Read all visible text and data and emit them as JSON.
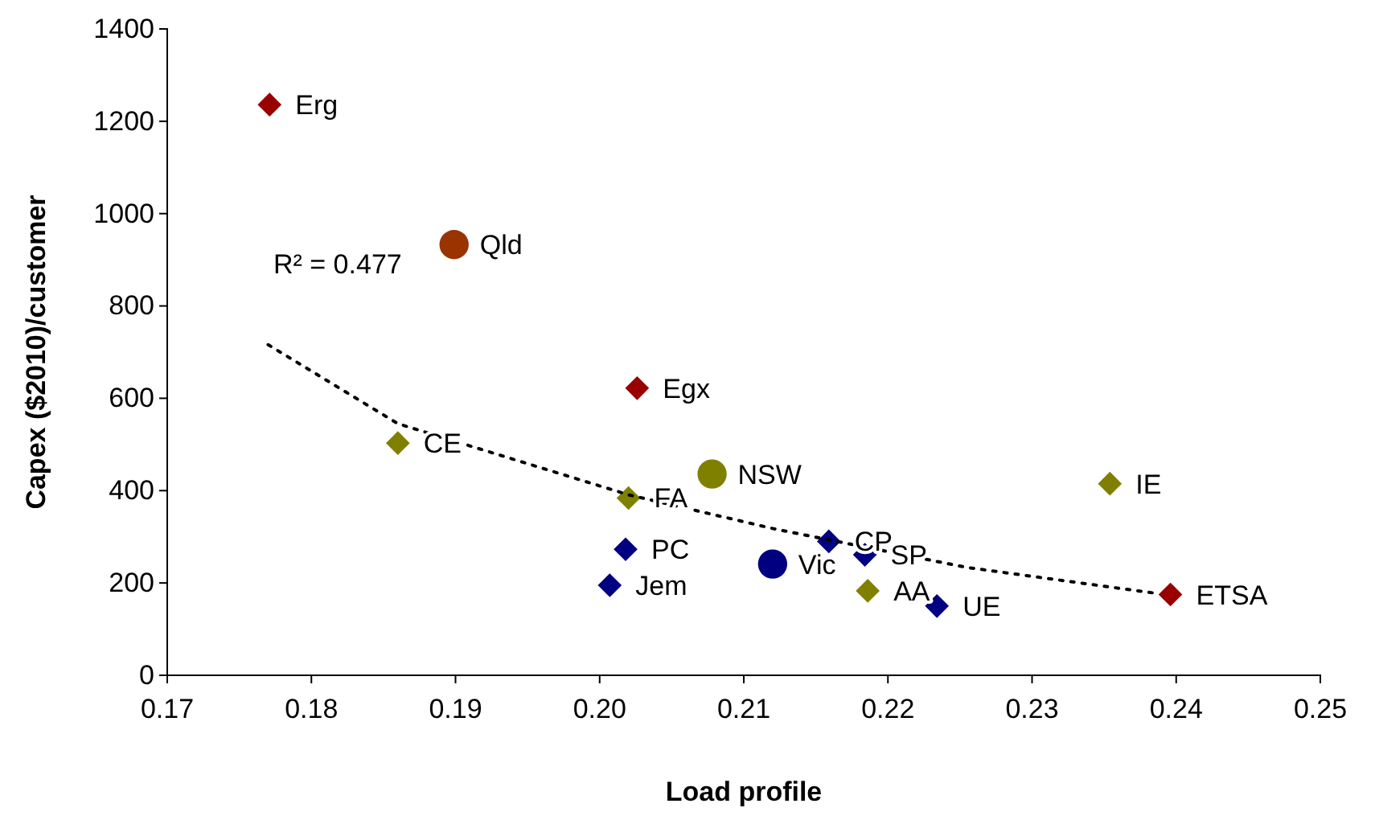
{
  "chart_data": {
    "type": "scatter",
    "xlabel": "Load profile",
    "ylabel": "Capex ($2010)/customer",
    "xlim": [
      0.17,
      0.25
    ],
    "xticks": [
      0.17,
      0.18,
      0.19,
      {
        "value": 0.2,
        "label": "0.20"
      },
      0.21,
      0.22,
      0.23,
      0.24,
      0.25
    ],
    "ylim": [
      0,
      1400
    ],
    "yticks": [
      0,
      200,
      400,
      600,
      800,
      1000,
      1200,
      1400
    ],
    "grid": false,
    "series": [
      {
        "color": "#990000",
        "marker": "diamond",
        "x": [
          0.1771,
          0.2026,
          0.2396
        ],
        "values": [
          1236,
          622,
          175
        ]
      },
      {
        "color": "#808000",
        "marker": "diamond",
        "x": [
          0.186,
          0.202,
          0.2186,
          0.2354
        ],
        "values": [
          503,
          384,
          183,
          415
        ]
      },
      {
        "color": "#000080",
        "marker": "diamond",
        "x": [
          0.2018,
          0.2007,
          0.2159,
          0.2184,
          0.2234
        ],
        "values": [
          273,
          195,
          290,
          261,
          150
        ]
      },
      {
        "color": "#993300",
        "marker": "circle",
        "x": [
          0.1899
        ],
        "values": [
          933
        ]
      },
      {
        "color": "#808000",
        "marker": "circle",
        "x": [
          0.2078
        ],
        "values": [
          436
        ]
      },
      {
        "color": "#000080",
        "marker": "circle",
        "x": [
          0.212
        ],
        "values": [
          241
        ]
      },
      {
        "type": "line",
        "color": "#000000",
        "line_style": "dotted",
        "marker": "none",
        "x": [
          0.177,
          0.186,
          0.202,
          0.212,
          0.2254,
          0.2385
        ],
        "values": [
          716,
          545,
          391,
          318,
          234,
          178
        ]
      }
    ],
    "annotations": [
      "R² = 0.477",
      {
        "text": "Erg",
        "x": 0.1771,
        "y": 1236
      },
      {
        "text": "Egx",
        "x": 0.2026,
        "y": 622
      },
      {
        "text": "ETSA",
        "x": 0.2396,
        "y": 175
      },
      {
        "text": "CE",
        "x": 0.186,
        "y": 503
      },
      {
        "text": "FA",
        "x": 0.202,
        "y": 384
      },
      {
        "text": "AA",
        "x": 0.2186,
        "y": 183
      },
      {
        "text": "IE",
        "x": 0.2354,
        "y": 415
      },
      {
        "text": "PC",
        "x": 0.2018,
        "y": 273
      },
      {
        "text": "Jem",
        "x": 0.2007,
        "y": 195
      },
      {
        "text": "CP",
        "x": 0.2159,
        "y": 290
      },
      {
        "text": "SP",
        "x": 0.2184,
        "y": 261
      },
      {
        "text": "UE",
        "x": 0.2234,
        "y": 150
      },
      {
        "text": "Qld",
        "x": 0.1899,
        "y": 933
      },
      {
        "text": "NSW",
        "x": 0.2078,
        "y": 436
      },
      {
        "text": "Vic",
        "x": 0.212,
        "y": 241
      }
    ]
  }
}
